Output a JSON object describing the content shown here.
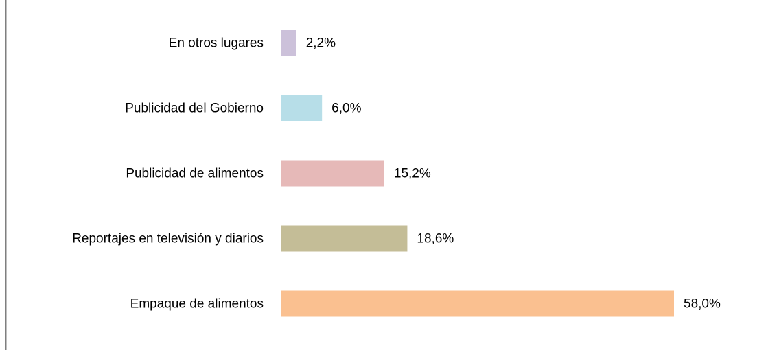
{
  "chart_data": {
    "type": "hbar",
    "categories": [
      "En otros lugares",
      "Publicidad del Gobierno",
      "Publicidad de alimentos",
      "Reportajes en televisión y diarios",
      "Empaque de alimentos"
    ],
    "values": [
      2.2,
      6.0,
      15.2,
      18.6,
      58.0
    ],
    "value_labels": [
      "2,2%",
      "6,0%",
      "15,2%",
      "18,6%",
      "58,0%"
    ],
    "colors": [
      "#ccc1da",
      "#b7dee8",
      "#e6b9b8",
      "#c4bd97",
      "#fac090"
    ]
  }
}
